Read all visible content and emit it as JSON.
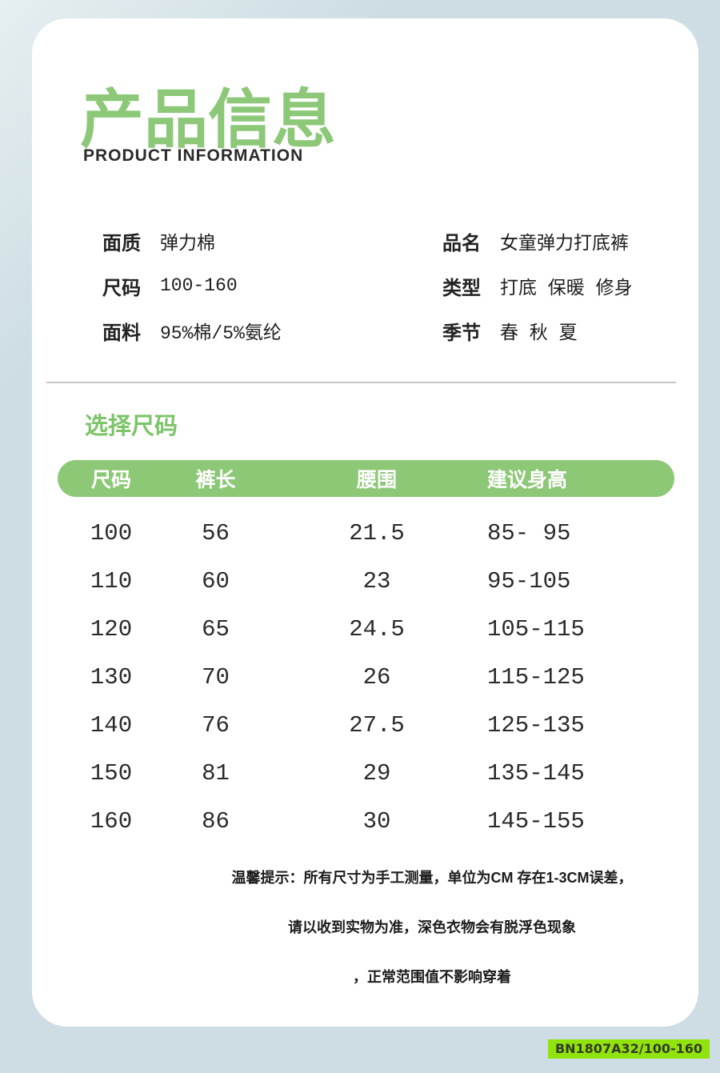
{
  "page": {
    "title": "产品信息",
    "subtitle": "PRODUCT INFORMATION"
  },
  "info": {
    "left": [
      {
        "label": "面质",
        "value": "弹力棉"
      },
      {
        "label": "尺码",
        "value": "100-160"
      },
      {
        "label": "面料",
        "value": "95%棉/5%氨纶"
      }
    ],
    "right": [
      {
        "label": "品名",
        "value": "女童弹力打底裤"
      },
      {
        "label": "类型",
        "value": "打底 保暖 修身"
      },
      {
        "label": "季节",
        "value": "春 秋 夏"
      }
    ]
  },
  "size_section": {
    "heading": "选择尺码",
    "table": {
      "headers": [
        "尺码",
        "裤长",
        "腰围",
        "建议身高"
      ],
      "rows": [
        [
          "100",
          "56",
          "21.5",
          "85- 95"
        ],
        [
          "110",
          "60",
          "23",
          "95-105"
        ],
        [
          "120",
          "65",
          "24.5",
          "105-115"
        ],
        [
          "130",
          "70",
          "26",
          "115-125"
        ],
        [
          "140",
          "76",
          "27.5",
          "125-135"
        ],
        [
          "150",
          "81",
          "29",
          "135-145"
        ],
        [
          "160",
          "86",
          "30",
          "145-155"
        ]
      ]
    }
  },
  "notes": [
    "温馨提示：所有尺寸为手工测量，单位为CM  存在1-3CM误差，",
    "请以收到实物为准，深色衣物会有脱浮色现象",
    "，正常范围值不影响穿着"
  ],
  "badge": {
    "text": "BN1807A32/100-160"
  },
  "colors": {
    "accent_green": "#8cc878",
    "table_header_green": "#8dc877",
    "badge_green": "#90e40c",
    "page_background": "#cddde3"
  }
}
